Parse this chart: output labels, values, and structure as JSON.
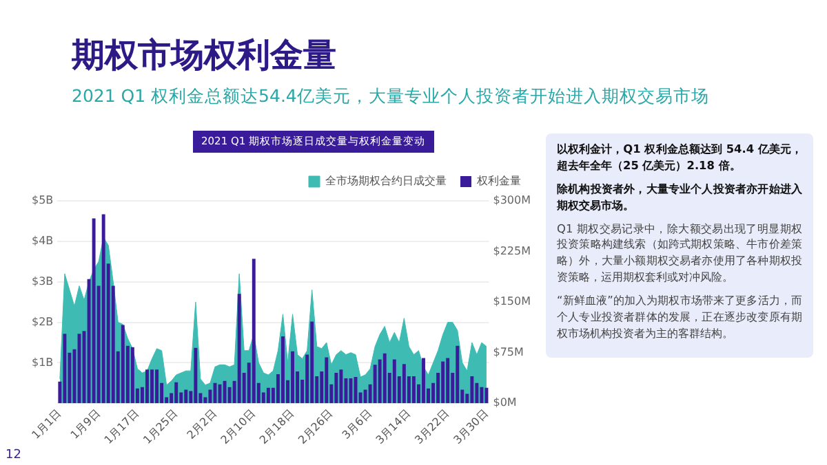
{
  "chart_data": {
    "type": "bar",
    "title": "期权市场权利金量",
    "subtitle": "2021 Q1 权利金总额达54.4亿美元，大量专业个人投资者开始进入期权交易市场",
    "annotations": [
      "2021 Q1 期权市场逐日成交量与权利金量变动",
      "以权利金计，Q1  权利金总额达到  54.4 亿美元，超去年全年（25  亿美元）2.18 倍。",
      "除机构投资者外，大量专业个人投资者亦开始进入期权交易市场。",
      "Q1  期权交易记录中，除大额交易出现了明显期权投资策略构建线索（如跨式期权策略、牛市价差策略）外，大量小额期权交易者亦使用了各种期权投资策略，运用期权套利或对冲风险。",
      "“新鲜血液”的加入为期权市场带来了更多活力，而个人专业投资者群体的发展，正在逐步改变原有期权市场机构投资者为主的客群结构。",
      "12"
    ],
    "categories": [
      "1月1日",
      null,
      null,
      null,
      null,
      null,
      null,
      null,
      "1月9日",
      null,
      null,
      null,
      null,
      null,
      null,
      null,
      "1月17日",
      null,
      null,
      null,
      null,
      null,
      null,
      null,
      "1月25日",
      null,
      null,
      null,
      null,
      null,
      null,
      null,
      "2月2日",
      null,
      null,
      null,
      null,
      null,
      null,
      null,
      "2月10日",
      null,
      null,
      null,
      null,
      null,
      null,
      null,
      "2月18日",
      null,
      null,
      null,
      null,
      null,
      null,
      null,
      "2月26日",
      null,
      null,
      null,
      null,
      null,
      null,
      null,
      "3月6日",
      null,
      null,
      null,
      null,
      null,
      null,
      null,
      "3月14日",
      null,
      null,
      null,
      null,
      null,
      null,
      null,
      "3月22日",
      null,
      null,
      null,
      null,
      null,
      null,
      null,
      "3月30日"
    ],
    "series": [
      {
        "name": "全市场期权合约日成交量",
        "type": "area",
        "color": "#3ebcb4",
        "values": [
          0.6,
          3.2,
          2.8,
          2.4,
          2.9,
          2.55,
          3.0,
          3.3,
          3.5,
          4.1,
          3.9,
          3.0,
          2.0,
          1.95,
          1.6,
          1.35,
          0.85,
          0.75,
          0.8,
          1.1,
          1.35,
          1.3,
          0.45,
          0.55,
          0.7,
          0.75,
          0.8,
          0.8,
          2.5,
          0.6,
          0.45,
          0.5,
          0.9,
          0.95,
          0.95,
          0.9,
          0.95,
          3.2,
          1.3,
          1.3,
          1.7,
          1.0,
          0.75,
          0.7,
          0.8,
          1.3,
          2.2,
          1.0,
          2.2,
          1.2,
          1.1,
          1.3,
          2.8,
          1.4,
          1.35,
          1.5,
          0.95,
          1.2,
          1.3,
          1.2,
          1.25,
          1.2,
          0.65,
          0.7,
          0.85,
          1.4,
          1.7,
          1.9,
          1.5,
          1.75,
          1.5,
          2.1,
          1.4,
          1.2,
          1.3,
          0.9,
          0.7,
          1.0,
          1.3,
          1.7,
          2.0,
          2.0,
          1.8,
          1.0,
          0.8,
          1.5,
          1.2,
          1.5,
          1.4
        ]
      },
      {
        "name": "权利金量",
        "type": "bar",
        "axis": "y2",
        "color": "#3a1c9b",
        "values": [
          32,
          103,
          75,
          80,
          103,
          107,
          184,
          274,
          174,
          280,
          207,
          174,
          77,
          116,
          85,
          83,
          22,
          24,
          50,
          50,
          50,
          30,
          9,
          15,
          31,
          16,
          20,
          18,
          82,
          15,
          9,
          20,
          30,
          28,
          33,
          24,
          33,
          162,
          45,
          60,
          214,
          30,
          16,
          23,
          23,
          43,
          99,
          34,
          77,
          47,
          35,
          72,
          121,
          40,
          47,
          68,
          28,
          45,
          50,
          37,
          37,
          39,
          16,
          20,
          28,
          57,
          65,
          74,
          45,
          65,
          40,
          58,
          40,
          40,
          28,
          67,
          22,
          30,
          45,
          62,
          67,
          45,
          85,
          20,
          14,
          40,
          30,
          24,
          23
        ]
      }
    ],
    "ylim": [
      0,
      5
    ],
    "yticks": [
      {
        "value": 0,
        "label": null
      },
      {
        "value": 1,
        "label": "$1B"
      },
      {
        "value": 2,
        "label": "$2B"
      },
      {
        "value": 3,
        "label": "$3B"
      },
      {
        "value": 4,
        "label": "$4B"
      },
      {
        "value": 5,
        "label": "$5B"
      }
    ],
    "y2lim": [
      0,
      300
    ],
    "y2ticks": [
      {
        "value": 0,
        "label": "$0M"
      },
      {
        "value": 75,
        "label": "$75M"
      },
      {
        "value": 150,
        "label": "$150M"
      },
      {
        "value": 225,
        "label": "$225M"
      },
      {
        "value": 300,
        "label": "$300M"
      }
    ],
    "grid": "y",
    "legend": "top right"
  }
}
